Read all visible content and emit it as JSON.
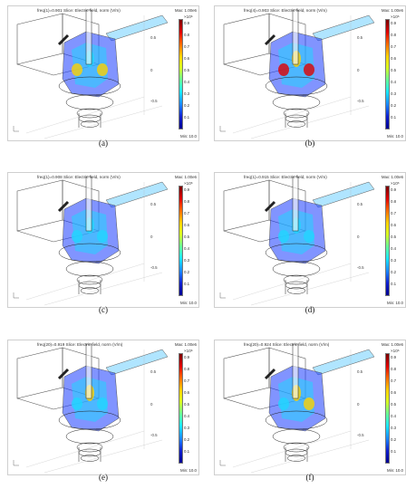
{
  "figure": {
    "panels": [
      {
        "id": "a",
        "caption": "(a)",
        "title": "freq(1)=0.901   Slice: Electric field, norm (V/m)",
        "max_label": "Max: 1.00e6",
        "min_label": "Min: 10.0",
        "exponent": "×10⁶",
        "ticks": [
          "0.9",
          "0.8",
          "0.7",
          "0.6",
          "0.5",
          "0.4",
          "0.3",
          "0.2",
          "0.1"
        ],
        "axis_ticks": [
          "0.5",
          "0",
          "-0.5"
        ],
        "hot": [
          0.55,
          0.35,
          0.5
        ]
      },
      {
        "id": "b",
        "caption": "(b)",
        "title": "freq(4)=0.903   Slice: Electric field, norm (V/m)",
        "max_label": "Max: 1.00e6",
        "min_label": "Min: 10.0",
        "exponent": "×10⁶",
        "ticks": [
          "0.9",
          "0.8",
          "0.7",
          "0.6",
          "0.5",
          "0.4",
          "0.3",
          "0.2",
          "0.1"
        ],
        "axis_ticks": [
          "0.5",
          "0",
          "-0.5"
        ],
        "hot": [
          0.9,
          0.7,
          0.8
        ]
      },
      {
        "id": "c",
        "caption": "(c)",
        "title": "freq(1)=0.908   Slice: Electric field, norm (V/m)",
        "max_label": "Max: 1.00e6",
        "min_label": "Min: 10.0",
        "exponent": "×10⁶",
        "ticks": [
          "0.9",
          "0.8",
          "0.7",
          "0.6",
          "0.5",
          "0.4",
          "0.3",
          "0.2",
          "0.1"
        ],
        "axis_ticks": [
          "0.5",
          "0",
          "-0.5"
        ],
        "hot": [
          0.35,
          0.3,
          0.35
        ]
      },
      {
        "id": "d",
        "caption": "(d)",
        "title": "freq(1)=0.915   Slice: Electric field, norm (V/m)",
        "max_label": "Max: 1.00e6",
        "min_label": "Min: 10.0",
        "exponent": "×10⁶",
        "ticks": [
          "0.9",
          "0.8",
          "0.7",
          "0.6",
          "0.5",
          "0.4",
          "0.3",
          "0.2",
          "0.1"
        ],
        "axis_ticks": [
          "0.5",
          "0",
          "-0.5"
        ],
        "hot": [
          0.2,
          0.15,
          0.2
        ]
      },
      {
        "id": "e",
        "caption": "(e)",
        "title": "freq(20)=0.919   Slice: Electric field, norm (V/m)",
        "max_label": "Max: 1.00e6",
        "min_label": "Min: 10.0",
        "exponent": "×10⁶",
        "ticks": [
          "0.9",
          "0.8",
          "0.7",
          "0.6",
          "0.5",
          "0.4",
          "0.3",
          "0.2",
          "0.1"
        ],
        "axis_ticks": [
          "0.5",
          "0",
          "-0.5"
        ],
        "hot": [
          0.4,
          0.6,
          0.45
        ]
      },
      {
        "id": "f",
        "caption": "(f)",
        "title": "freq(20)=0.924   Slice: Electric field, norm (V/m)",
        "max_label": "Max: 1.00e6",
        "min_label": "Min: 10.0",
        "exponent": "×10⁶",
        "ticks": [
          "0.9",
          "0.8",
          "0.7",
          "0.6",
          "0.5",
          "0.4",
          "0.3",
          "0.2",
          "0.1"
        ],
        "axis_ticks": [
          "0.5",
          "0",
          "-0.5"
        ],
        "hot": [
          0.45,
          0.65,
          0.5
        ]
      }
    ],
    "colors": {
      "frame": "#555555",
      "field_low": "#1a3cff",
      "field_mid": "#22d4ff",
      "field_high": "#ffd000",
      "field_peak": "#e00000"
    }
  }
}
